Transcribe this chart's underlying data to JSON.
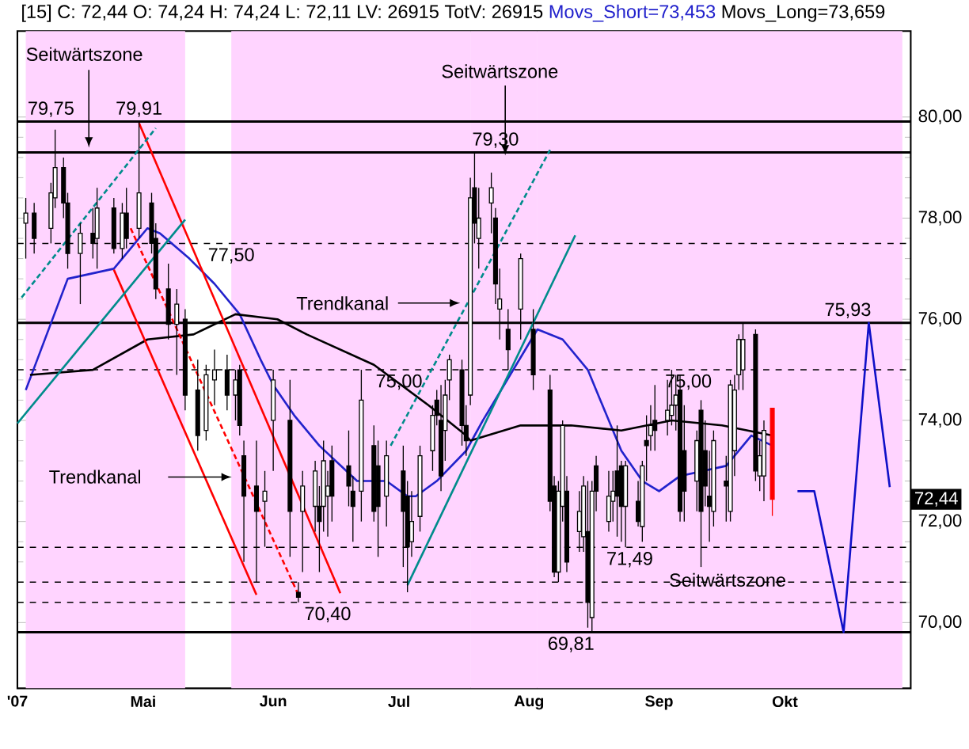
{
  "chart_data": {
    "type": "candlestick",
    "title": "[15] C: 72,44 O: 74,24 H: 74,24 L: 72,11 LV: 26915 TotV: 26915",
    "legend": "top",
    "xlim": [
      "2007-04-01",
      "2007-10-31"
    ],
    "ylim": [
      68.7,
      81.7
    ],
    "xticks": [
      {
        "value": "2007-04-01",
        "label": "'07"
      },
      {
        "value": "2007-05-01",
        "label": "Mai"
      },
      {
        "value": "2007-06-01",
        "label": "Jun"
      },
      {
        "value": "2007-07-01",
        "label": "Jul"
      },
      {
        "value": "2007-08-01",
        "label": "Aug"
      },
      {
        "value": "2007-09-01",
        "label": "Sep"
      },
      {
        "value": "2007-10-01",
        "label": "Okt"
      }
    ],
    "yticks": [
      {
        "value": 70,
        "label": "70,00"
      },
      {
        "value": 72,
        "label": "72,00"
      },
      {
        "value": 74,
        "label": "74,00"
      },
      {
        "value": 76,
        "label": "76,00"
      },
      {
        "value": 78,
        "label": "78,00"
      },
      {
        "value": 80,
        "label": "80,00"
      }
    ],
    "x": [
      "2007-04-03",
      "2007-04-05",
      "2007-04-09",
      "2007-04-10",
      "2007-04-12",
      "2007-04-13",
      "2007-04-16",
      "2007-04-19",
      "2007-04-20",
      "2007-04-24",
      "2007-04-26",
      "2007-04-27",
      "2007-04-30",
      "2007-05-03",
      "2007-05-04",
      "2007-05-07",
      "2007-05-09",
      "2007-05-11",
      "2007-05-14",
      "2007-05-16",
      "2007-05-18",
      "2007-05-21",
      "2007-05-23",
      "2007-05-24",
      "2007-05-25",
      "2007-05-28",
      "2007-05-30",
      "2007-06-01",
      "2007-06-05",
      "2007-06-07",
      "2007-06-08",
      "2007-06-11",
      "2007-06-12",
      "2007-06-13",
      "2007-06-14",
      "2007-06-15",
      "2007-06-19",
      "2007-06-20",
      "2007-06-22",
      "2007-06-25",
      "2007-06-26",
      "2007-06-28",
      "2007-07-02",
      "2007-07-03",
      "2007-07-04",
      "2007-07-06",
      "2007-07-09",
      "2007-07-10",
      "2007-07-11",
      "2007-07-12",
      "2007-07-13",
      "2007-07-16",
      "2007-07-17",
      "2007-07-18",
      "2007-07-19",
      "2007-07-20",
      "2007-07-23",
      "2007-07-24",
      "2007-07-25",
      "2007-07-27",
      "2007-07-30",
      "2007-08-02",
      "2007-08-06",
      "2007-08-07",
      "2007-08-08",
      "2007-08-09",
      "2007-08-10",
      "2007-08-13",
      "2007-08-14",
      "2007-08-15",
      "2007-08-16",
      "2007-08-17",
      "2007-08-20",
      "2007-08-21",
      "2007-08-22",
      "2007-08-23",
      "2007-08-24",
      "2007-08-27",
      "2007-08-28",
      "2007-08-29",
      "2007-08-30",
      "2007-08-31",
      "2007-09-03",
      "2007-09-04",
      "2007-09-05",
      "2007-09-06",
      "2007-09-07",
      "2007-09-10",
      "2007-09-11",
      "2007-09-12",
      "2007-09-13",
      "2007-09-14",
      "2007-09-17",
      "2007-09-18",
      "2007-09-19",
      "2007-09-20",
      "2007-09-21",
      "2007-09-24",
      "2007-09-25",
      "2007-09-26",
      "2007-09-28"
    ],
    "ohlc": [
      [
        77.9,
        78.4,
        77.2,
        78.1
      ],
      [
        78.1,
        78.3,
        77.3,
        77.6
      ],
      [
        77.8,
        78.7,
        77.5,
        78.5
      ],
      [
        78.4,
        79.75,
        78.2,
        79.0
      ],
      [
        79.0,
        79.2,
        78.0,
        78.3
      ],
      [
        78.3,
        78.5,
        77.0,
        77.3
      ],
      [
        77.3,
        77.9,
        76.3,
        77.7
      ],
      [
        77.7,
        78.2,
        77.2,
        77.5
      ],
      [
        77.6,
        78.6,
        77.0,
        78.2
      ],
      [
        78.2,
        78.4,
        77.3,
        77.4
      ],
      [
        77.4,
        78.3,
        77.2,
        78.1
      ],
      [
        78.1,
        78.6,
        77.4,
        77.6
      ],
      [
        77.8,
        79.91,
        77.6,
        78.5
      ],
      [
        78.3,
        78.5,
        77.3,
        77.5
      ],
      [
        77.6,
        77.9,
        76.4,
        76.6
      ],
      [
        76.6,
        77.1,
        75.6,
        75.9
      ],
      [
        75.9,
        76.6,
        74.9,
        76.3
      ],
      [
        76.0,
        76.2,
        74.2,
        74.5
      ],
      [
        74.6,
        75.2,
        73.4,
        73.7
      ],
      [
        73.8,
        75.1,
        73.6,
        74.9
      ],
      [
        74.8,
        75.4,
        74.3,
        75.0
      ],
      [
        75.0,
        75.3,
        74.2,
        74.5
      ],
      [
        74.5,
        75.0,
        74.0,
        74.8
      ],
      [
        75.0,
        75.1,
        73.7,
        73.9
      ],
      [
        73.3,
        73.6,
        71.2,
        72.5
      ],
      [
        72.7,
        73.6,
        70.8,
        72.2
      ],
      [
        72.4,
        73.0,
        71.5,
        72.6
      ],
      [
        74.0,
        75.0,
        73.0,
        74.8
      ],
      [
        74.0,
        74.8,
        71.3,
        72.2
      ],
      [
        70.6,
        70.8,
        70.4,
        70.5
      ],
      [
        72.2,
        73.0,
        71.0,
        72.7
      ],
      [
        72.3,
        73.2,
        71.8,
        73.0
      ],
      [
        72.3,
        72.7,
        71.0,
        72.0
      ],
      [
        72.3,
        73.6,
        71.8,
        73.2
      ],
      [
        72.5,
        73.0,
        71.7,
        72.7
      ],
      [
        73.2,
        73.5,
        72.0,
        72.5
      ],
      [
        73.1,
        73.8,
        72.3,
        72.7
      ],
      [
        72.6,
        72.9,
        71.6,
        72.3
      ],
      [
        72.6,
        75.0,
        72.0,
        74.4
      ],
      [
        73.5,
        73.9,
        72.0,
        72.2
      ],
      [
        73.1,
        73.6,
        71.3,
        72.3
      ],
      [
        72.5,
        73.6,
        71.9,
        73.3
      ],
      [
        73.0,
        73.5,
        71.1,
        72.2
      ],
      [
        72.5,
        72.8,
        70.6,
        71.5
      ],
      [
        71.6,
        72.6,
        71.3,
        72.0
      ],
      [
        72.1,
        73.5,
        71.8,
        73.3
      ],
      [
        73.4,
        74.3,
        73.0,
        74.1
      ],
      [
        74.4,
        74.6,
        73.9,
        74.1
      ],
      [
        74.0,
        74.7,
        72.6,
        72.9
      ],
      [
        73.8,
        74.8,
        73.2,
        74.5
      ],
      [
        74.8,
        75.3,
        74.4,
        75.2
      ],
      [
        75.0,
        75.2,
        73.5,
        73.9
      ],
      [
        73.9,
        74.3,
        73.3,
        73.6
      ],
      [
        74.5,
        78.8,
        74.3,
        78.4
      ],
      [
        78.6,
        79.3,
        77.5,
        77.9
      ],
      [
        77.6,
        78.6,
        77.0,
        78.0
      ],
      [
        78.3,
        78.9,
        77.7,
        78.6
      ],
      [
        78.0,
        78.2,
        76.3,
        76.7
      ],
      [
        76.2,
        77.0,
        75.6,
        76.4
      ],
      [
        75.8,
        76.2,
        75.0,
        75.4
      ],
      [
        76.2,
        77.3,
        75.6,
        77.2
      ],
      [
        75.8,
        76.2,
        74.6,
        74.9
      ],
      [
        74.6,
        74.9,
        72.2,
        72.4
      ],
      [
        72.7,
        72.9,
        70.9,
        71.0
      ],
      [
        71.0,
        72.8,
        70.8,
        72.6
      ],
      [
        72.3,
        74.0,
        72.0,
        73.9
      ],
      [
        72.6,
        72.9,
        71.0,
        71.2
      ],
      [
        71.8,
        72.6,
        71.4,
        72.2
      ],
      [
        71.7,
        72.9,
        71.4,
        72.7
      ],
      [
        71.8,
        72.8,
        69.9,
        70.4
      ],
      [
        70.1,
        72.8,
        69.81,
        72.6
      ],
      [
        73.1,
        73.3,
        72.2,
        72.6
      ],
      [
        72.0,
        73.0,
        71.8,
        72.5
      ],
      [
        72.4,
        73.0,
        72.0,
        72.6
      ],
      [
        73.0,
        73.9,
        71.7,
        72.5
      ],
      [
        73.1,
        73.2,
        71.6,
        72.3
      ],
      [
        72.3,
        73.2,
        71.49,
        73.1
      ],
      [
        72.4,
        72.8,
        71.9,
        72.0
      ],
      [
        71.9,
        73.2,
        71.6,
        73.1
      ],
      [
        73.6,
        74.1,
        72.8,
        73.5
      ],
      [
        73.7,
        74.3,
        73.4,
        73.9
      ],
      [
        74.0,
        74.7,
        73.4,
        73.8
      ],
      [
        74.0,
        74.8,
        73.7,
        74.2
      ],
      [
        74.1,
        75.0,
        73.9,
        74.3
      ],
      [
        74.3,
        74.9,
        73.8,
        74.5
      ],
      [
        74.6,
        74.9,
        72.0,
        72.2
      ],
      [
        73.4,
        74.3,
        72.0,
        72.6
      ],
      [
        72.8,
        73.8,
        72.2,
        73.6
      ],
      [
        74.2,
        74.4,
        71.1,
        72.2
      ],
      [
        73.4,
        74.0,
        72.3,
        72.7
      ],
      [
        72.5,
        73.4,
        71.6,
        72.3
      ],
      [
        72.2,
        73.8,
        71.9,
        73.6
      ],
      [
        72.8,
        73.3,
        72.0,
        72.7
      ],
      [
        72.2,
        74.8,
        72.0,
        74.7
      ],
      [
        73.4,
        74.9,
        72.9,
        74.6
      ],
      [
        74.9,
        75.7,
        74.6,
        75.6
      ],
      [
        75.0,
        75.93,
        74.6,
        75.6
      ],
      [
        75.7,
        75.8,
        72.8,
        73.0
      ],
      [
        72.9,
        73.6,
        72.6,
        73.3
      ],
      [
        72.9,
        74.0,
        72.4,
        73.8
      ],
      [
        74.24,
        74.24,
        72.11,
        72.44
      ]
    ],
    "colors": [
      "#000000",
      "#000000",
      "#000000",
      "#000000",
      "#000000",
      "#000000",
      "#000000",
      "#000000",
      "#000000",
      "#000000",
      "#000000",
      "#000000",
      "#000000",
      "#000000",
      "#000000",
      "#000000",
      "#000000",
      "#000000",
      "#000000",
      "#000000",
      "#000000",
      "#000000",
      "#000000",
      "#000000",
      "#000000",
      "#000000",
      "#000000",
      "#000000",
      "#000000",
      "#000000",
      "#000000",
      "#000000",
      "#000000",
      "#000000",
      "#000000",
      "#000000",
      "#000000",
      "#000000",
      "#000000",
      "#000000",
      "#000000",
      "#000000",
      "#000000",
      "#000000",
      "#000000",
      "#000000",
      "#000000",
      "#000000",
      "#000000",
      "#000000",
      "#000000",
      "#000000",
      "#000000",
      "#000000",
      "#000000",
      "#000000",
      "#000000",
      "#000000",
      "#000000",
      "#000000",
      "#000000",
      "#000000",
      "#000000",
      "#000000",
      "#000000",
      "#000000",
      "#000000",
      "#000000",
      "#000000",
      "#000000",
      "#000000",
      "#000000",
      "#000000",
      "#000000",
      "#000000",
      "#000000",
      "#000000",
      "#000000",
      "#000000",
      "#000000",
      "#000000",
      "#000000",
      "#000000",
      "#000000",
      "#000000",
      "#000000",
      "#000000",
      "#000000",
      "#000000",
      "#000000",
      "#000000",
      "#000000",
      "#000000",
      "#000000",
      "#000000",
      "#000000",
      "#000000",
      "#000000",
      "#000000",
      "#000000",
      "#ff0000"
    ],
    "series": [
      {
        "type": "line",
        "name": "Movs_Short=73,453",
        "color": "#2222cc",
        "x": [
          "2007-04-03",
          "2007-04-13",
          "2007-04-24",
          "2007-05-02",
          "2007-05-05",
          "2007-05-12",
          "2007-05-18",
          "2007-05-24",
          "2007-05-29",
          "2007-06-01",
          "2007-06-06",
          "2007-06-12",
          "2007-06-21",
          "2007-06-28",
          "2007-07-03",
          "2007-07-05",
          "2007-07-10",
          "2007-07-17",
          "2007-07-21",
          "2007-08-03",
          "2007-08-09",
          "2007-08-15",
          "2007-08-18",
          "2007-08-23",
          "2007-08-28",
          "2007-09-01",
          "2007-09-06",
          "2007-09-17",
          "2007-09-23",
          "2007-09-28"
        ],
        "values": [
          74.6,
          76.8,
          77.0,
          77.8,
          77.7,
          77.2,
          76.7,
          76.1,
          75.2,
          74.7,
          74.1,
          73.5,
          72.8,
          72.8,
          72.5,
          72.5,
          72.8,
          73.4,
          74.0,
          75.8,
          75.6,
          75.0,
          74.4,
          73.4,
          72.8,
          72.6,
          72.9,
          73.1,
          73.7,
          73.5
        ]
      },
      {
        "type": "line",
        "name": "Movs_Long=73,659",
        "color": "#000000",
        "x": [
          "2007-04-04",
          "2007-04-19",
          "2007-05-02",
          "2007-05-13",
          "2007-05-23",
          "2007-06-02",
          "2007-06-09",
          "2007-06-25",
          "2007-07-08",
          "2007-07-17",
          "2007-07-18",
          "2007-07-30",
          "2007-08-11",
          "2007-08-23",
          "2007-09-04",
          "2007-09-16",
          "2007-09-28"
        ],
        "values": [
          74.9,
          75.0,
          75.6,
          75.7,
          76.1,
          76.0,
          75.7,
          75.1,
          74.3,
          73.7,
          73.6,
          73.9,
          73.9,
          73.8,
          74.0,
          73.9,
          73.7
        ]
      },
      {
        "type": "line",
        "color": "#ff0000",
        "x": [
          "2007-04-30",
          "2007-06-17"
        ],
        "values": [
          79.88,
          70.58
        ]
      },
      {
        "type": "line",
        "color": "#ff0000",
        "x": [
          "2007-04-24",
          "2007-05-28"
        ],
        "values": [
          76.98,
          70.55
        ]
      },
      {
        "type": "line",
        "color": "#ff0000",
        "line_style": "dashed",
        "x": [
          "2007-04-28",
          "2007-06-07"
        ],
        "values": [
          77.8,
          70.55
        ]
      },
      {
        "type": "line",
        "color": "#008b8b",
        "x": [
          "2007-04-01",
          "2007-05-11"
        ],
        "values": [
          73.94,
          77.97
        ]
      },
      {
        "type": "line",
        "color": "#008b8b",
        "x": [
          "2007-07-03",
          "2007-08-12"
        ],
        "values": [
          70.74,
          77.66
        ]
      },
      {
        "type": "line",
        "color": "#008b8b",
        "line_style": "dashed",
        "x": [
          "2007-04-02",
          "2007-05-04"
        ],
        "values": [
          76.43,
          79.78
        ]
      },
      {
        "type": "line",
        "color": "#008b8b",
        "line_style": "dashed",
        "x": [
          "2007-06-29",
          "2007-08-06"
        ],
        "values": [
          73.5,
          79.35
        ]
      },
      {
        "type": "line",
        "color": "#1010c8",
        "x": [
          "2007-10-04",
          "2007-10-08",
          "2007-10-15",
          "2007-10-21",
          "2007-10-26"
        ],
        "values": [
          72.6,
          72.6,
          69.81,
          75.93,
          72.68
        ]
      }
    ],
    "bands": [
      {
        "axis": "x",
        "from": "2007-04-03",
        "to": "2007-05-11",
        "color": "#ffd4ff"
      },
      {
        "axis": "x",
        "from": "2007-05-22",
        "to": "2007-07-18",
        "color": "#ffd4ff"
      },
      {
        "axis": "x",
        "from": "2007-07-18",
        "to": "2007-08-03",
        "color": "#ffd4ff"
      },
      {
        "axis": "x",
        "from": "2007-08-03",
        "to": "2007-10-29",
        "color": "#ffd4ff"
      }
    ],
    "ref_lines": [
      {
        "axis": "y",
        "value": 77.5,
        "line_style": "dashed",
        "color": "#000000"
      },
      {
        "axis": "y",
        "value": 75.0,
        "line_style": "dashed",
        "color": "#000000"
      },
      {
        "axis": "y",
        "value": 71.49,
        "line_style": "dashed",
        "color": "#000000"
      },
      {
        "axis": "y",
        "value": 70.8,
        "line_style": "dashed",
        "color": "#000000"
      },
      {
        "axis": "y",
        "value": 70.4,
        "line_style": "dashed",
        "color": "#000000"
      },
      {
        "axis": "y",
        "value": 79.91,
        "line_style": "solid",
        "color": "#000000"
      },
      {
        "axis": "y",
        "value": 79.3,
        "line_style": "solid",
        "color": "#000000"
      },
      {
        "axis": "y",
        "value": 75.93,
        "line_style": "solid",
        "color": "#000000"
      },
      {
        "axis": "y",
        "value": 69.81,
        "line_style": "solid",
        "color": "#000000"
      }
    ],
    "annotations": [
      "Seitwärtszone",
      {
        "text": "79,75",
        "x": "2007-04-09",
        "y": 79.91
      },
      {
        "text": "79,91",
        "x": "2007-04-30",
        "y": 79.91
      },
      {
        "text": "77,50",
        "x": "2007-05-22",
        "y": 77.5
      },
      "Trendkanal",
      {
        "text": "75,00",
        "x": "2007-07-01",
        "y": 75.0
      },
      "Trendkanal",
      {
        "text": "70,40",
        "x": "2007-06-14",
        "y": 70.4
      },
      "Seitwärtszone",
      {
        "text": "79,30",
        "x": "2007-07-24",
        "y": 79.3
      },
      {
        "text": "75,93",
        "x": "2007-10-16",
        "y": 75.93
      },
      {
        "text": "75,00",
        "x": "2007-09-08",
        "y": 75.0
      },
      {
        "text": "71,49",
        "x": "2007-08-25",
        "y": 71.49
      },
      "Seitwärtszone",
      {
        "text": "69,81",
        "x": "2007-08-11",
        "y": 69.81
      },
      {
        "text": "72,44",
        "y": 72.44
      }
    ]
  }
}
